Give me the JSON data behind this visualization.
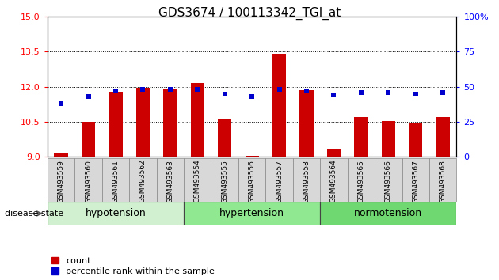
{
  "title": "GDS3674 / 100113342_TGI_at",
  "samples": [
    "GSM493559",
    "GSM493560",
    "GSM493561",
    "GSM493562",
    "GSM493563",
    "GSM493554",
    "GSM493555",
    "GSM493556",
    "GSM493557",
    "GSM493558",
    "GSM493564",
    "GSM493565",
    "GSM493566",
    "GSM493567",
    "GSM493568"
  ],
  "count_values": [
    9.15,
    10.5,
    11.8,
    11.95,
    11.9,
    12.15,
    10.65,
    9.05,
    13.4,
    11.85,
    9.3,
    10.7,
    10.55,
    10.45,
    10.7
  ],
  "percentile_values": [
    38,
    43,
    47,
    48,
    48,
    48,
    45,
    43,
    48,
    47,
    44,
    46,
    46,
    45,
    46
  ],
  "groups": [
    {
      "label": "hypotension",
      "start": 0,
      "end": 5,
      "color": "#d0f0d0"
    },
    {
      "label": "hypertension",
      "start": 5,
      "end": 10,
      "color": "#90e890"
    },
    {
      "label": "normotension",
      "start": 10,
      "end": 15,
      "color": "#70d870"
    }
  ],
  "ylim_left": [
    9,
    15
  ],
  "ylim_right": [
    0,
    100
  ],
  "yticks_left": [
    9,
    10.5,
    12,
    13.5,
    15
  ],
  "yticks_right": [
    0,
    25,
    50,
    75,
    100
  ],
  "bar_color": "#cc0000",
  "dot_color": "#0000cc",
  "bar_bottom": 9,
  "bar_width": 0.5,
  "dot_size": 18,
  "grid_color": "#000000",
  "xlabel_fontsize": 7,
  "tick_fontsize": 8,
  "title_fontsize": 11,
  "legend_count_label": "count",
  "legend_pct_label": "percentile rank within the sample",
  "bg_color": "#ffffff",
  "xtick_bg": "#d8d8d8",
  "group_border_color": "#444444"
}
